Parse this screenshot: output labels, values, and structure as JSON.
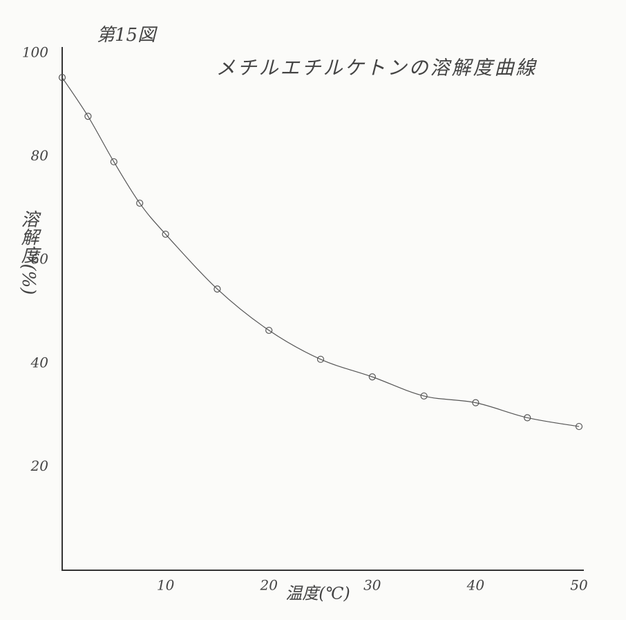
{
  "chart_data": {
    "type": "line",
    "figure_label": "第15図",
    "title": "メチルエチルケトンの溶解度曲線",
    "y_label": "溶解度(%)",
    "x_label": "温度(℃)",
    "x": [
      0,
      2.5,
      5,
      7.5,
      10,
      15,
      20,
      25,
      30,
      35,
      40,
      45,
      50
    ],
    "values": [
      95.3,
      87.8,
      79.0,
      71.0,
      65.0,
      54.4,
      46.4,
      40.8,
      37.4,
      33.7,
      32.4,
      29.5,
      27.8
    ],
    "color": "#555555",
    "xlim": [
      0,
      50
    ],
    "xticks": [
      10,
      20,
      30,
      40,
      50
    ],
    "ylim": [
      0,
      100
    ],
    "yticks": [
      20,
      40,
      60,
      80,
      100
    ],
    "grid": false
  }
}
